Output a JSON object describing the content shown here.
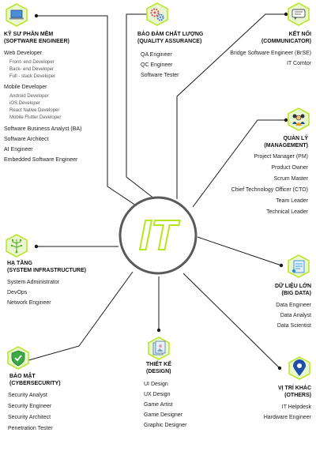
{
  "center": {
    "label": "IT"
  },
  "colors": {
    "accent": "#b5e61d",
    "line": "#1a1a1a",
    "ring": "#555555"
  },
  "software": {
    "title1": "KỸ SƯ PHẦN MỀM",
    "title2": "(SOFTWARE ENGINEER)",
    "icon": "laptop-icon",
    "web_dev": "Web Developer",
    "web_sub": [
      "Front- end Developer",
      "Back- end Developer",
      "Full - stack Developer"
    ],
    "mobile_dev": "Mobile Developer",
    "mobile_sub": [
      "Android  Developer",
      "iOS Developer",
      "React Native Developer",
      "Mobile Flutter Developer"
    ],
    "items": [
      "Software Business Analyst (BA)",
      "Software Architect",
      "AI Engineer",
      "Embedded Software Engineer"
    ]
  },
  "qa": {
    "title1": "BẢO ĐẢM CHẤT LƯỢNG",
    "title2": "(QUALITY ASSURANCE)",
    "icon": "gears-icon",
    "items": [
      "QA Engineer",
      "QC Engineer",
      "Software Tester"
    ]
  },
  "communicator": {
    "title1": "KẾT NỐI",
    "title2": "(COMMUNICATOR)",
    "icon": "chat-icon",
    "items": [
      "Bridge Software Engineer (BrSE)",
      "IT Comtor"
    ]
  },
  "management": {
    "title1": "QUẢN LÝ",
    "title2": "(MANAGEMENT)",
    "icon": "team-icon",
    "items": [
      "Project Manager (PM)",
      "Product Owner",
      "Scrum Master",
      "Chief Technology Officer (CTO)",
      "Team Leader",
      "Technical Leader"
    ]
  },
  "infra": {
    "title1": "HẠ TẦNG",
    "title2": "(SYSTEM INFRASTRUCTURE)",
    "icon": "network-icon",
    "items": [
      "System Administrator",
      "DevOps",
      "Network Engineer"
    ]
  },
  "bigdata": {
    "title1": "DỮ LIỆU LỚN",
    "title2": "(BIG DATA)",
    "icon": "data-icon",
    "items": [
      "Data Engineer",
      "Data Analyst",
      "Data Scientist"
    ]
  },
  "security": {
    "title1": "BẢO MẬT",
    "title2": "(CYBERSECURITY)",
    "icon": "shield-check-icon",
    "items": [
      "Security Analyst",
      "Security Engineer",
      "Security Architect",
      "Penetration Tester"
    ]
  },
  "design": {
    "title1": "THIẾT KẾ",
    "title2": "(DESIGN)",
    "icon": "design-icon",
    "items": [
      "UI Design",
      "UX Design",
      "Game Artist",
      "Game Designer",
      "Graphic Designer"
    ]
  },
  "others": {
    "title1": "VỊ TRÍ KHÁC",
    "title2": "(OTHERS)",
    "icon": "location-pin-icon",
    "items": [
      "IT Helpdesk",
      "Hardware Engineer"
    ]
  }
}
